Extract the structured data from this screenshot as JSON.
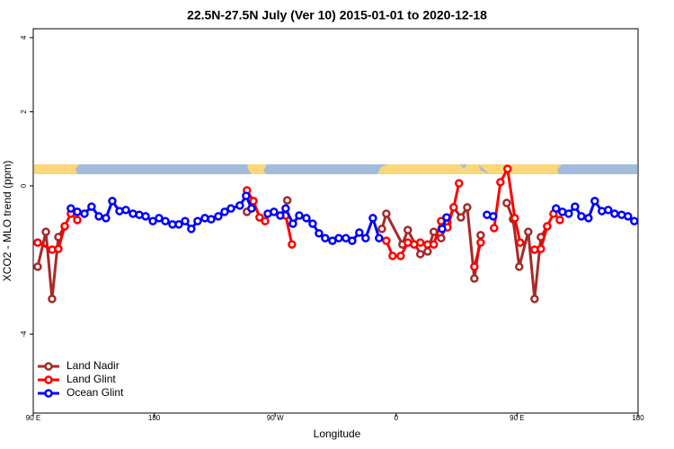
{
  "chart_data": {
    "type": "line",
    "title": "22.5N-27.5N July (Ver 10)   2015-01-01 to 2020-12-18",
    "x_label": "Longitude",
    "y_label": "XCO2 - MLO trend (ppm)",
    "xlim": [
      90,
      540
    ],
    "xticks": [
      {
        "value": 90,
        "label": "90 E"
      },
      180,
      {
        "value": 270,
        "label": "90 W"
      },
      {
        "value": 360,
        "label": "0"
      },
      {
        "value": 450,
        "label": "90 E"
      },
      {
        "value": 540,
        "label": "180"
      }
    ],
    "ylim": [
      -6.13,
      4.24
    ],
    "yticks": [
      -4,
      0,
      2,
      4
    ],
    "legend": "bottom-left",
    "series": [
      {
        "name": "Land Nadir",
        "color": "#a52a2a",
        "x": [
          93.3,
          99.4,
          104,
          108.7,
          113.4,
          null,
          249,
          253.8,
          null,
          279,
          null,
          349.4,
          352.7,
          364.7,
          368.7,
          378,
          383.4,
          388,
          393.5,
          398.2,
          402.8,
          408.2,
          412.9,
          418.2,
          422.9,
          null,
          442.3,
          447,
          451.6,
          458.3,
          463,
          467.7,
          472.4
        ],
        "values": [
          -2.18,
          -1.24,
          -3.05,
          -1.38,
          -1.09,
          null,
          -0.7,
          -0.41,
          null,
          -0.39,
          null,
          -1.16,
          -0.75,
          -1.58,
          -1.19,
          -1.84,
          -1.77,
          -1.24,
          -1.41,
          -0.99,
          -0.58,
          -0.85,
          -0.58,
          -2.5,
          -1.33,
          null,
          -0.46,
          -0.9,
          -2.18,
          -1.24,
          -3.05,
          -1.38,
          -1.09
        ]
      },
      {
        "name": "Land Glint",
        "color": "#ff0000",
        "x": [
          93.3,
          104,
          108.7,
          113.4,
          118,
          122.8,
          null,
          249,
          253.8,
          258.4,
          262.5,
          null,
          277.8,
          282.5,
          null,
          352.7,
          357.4,
          363.4,
          368.7,
          373.4,
          378,
          383.4,
          388,
          393.5,
          398.2,
          402.8,
          406.8,
          null,
          418.2,
          422.9,
          null,
          432.9,
          437.6,
          442.9,
          448.3,
          452.3,
          null,
          463,
          467.7,
          472.4,
          477.1,
          481.8
        ],
        "values": [
          -1.53,
          -1.72,
          -1.7,
          -1.09,
          -0.75,
          -0.92,
          null,
          -0.12,
          -0.41,
          -0.85,
          -0.95,
          null,
          -0.8,
          -1.58,
          null,
          -1.48,
          -1.89,
          -1.89,
          -1.53,
          -1.58,
          -1.53,
          -1.58,
          -1.58,
          -0.95,
          -1.12,
          -0.58,
          0.07,
          null,
          -2.18,
          -1.53,
          null,
          -1.14,
          0.1,
          0.46,
          -0.87,
          -1.53,
          null,
          -1.72,
          -1.7,
          -1.09,
          -0.75,
          -0.92
        ]
      },
      {
        "name": "Ocean Glint",
        "color": "#0000ff",
        "x": [
          118,
          122.8,
          128.1,
          133.4,
          138.8,
          144.1,
          148.8,
          154.2,
          158.9,
          164.2,
          168.9,
          173.6,
          179,
          183.6,
          188.3,
          193.6,
          198.3,
          203,
          207.6,
          212.3,
          217.7,
          222.4,
          227.7,
          232.4,
          237.1,
          243.7,
          248.4,
          252.4,
          null,
          264.5,
          269.1,
          273.8,
          277.8,
          283.2,
          287.9,
          293.2,
          297.9,
          302.6,
          307.2,
          312.6,
          317.3,
          322.6,
          327.3,
          332.6,
          337.3,
          342.7,
          347.3,
          null,
          394.2,
          397.5,
          null,
          427.6,
          432.2,
          null,
          479,
          483.7,
          488.4,
          493.1,
          497.8,
          503.1,
          507.8,
          513.1,
          517.8,
          522.5,
          527.8,
          532.5,
          537.2
        ],
        "values": [
          -0.61,
          -0.7,
          -0.75,
          -0.56,
          -0.82,
          -0.87,
          -0.41,
          -0.68,
          -0.65,
          -0.75,
          -0.78,
          -0.82,
          -0.95,
          -0.87,
          -0.95,
          -1.04,
          -1.04,
          -0.95,
          -1.16,
          -0.95,
          -0.87,
          -0.9,
          -0.82,
          -0.7,
          -0.61,
          -0.53,
          -0.27,
          -0.61,
          null,
          -0.75,
          -0.7,
          -0.8,
          -0.61,
          -1.02,
          -0.8,
          -0.87,
          -1.02,
          -1.28,
          -1.41,
          -1.48,
          -1.41,
          -1.41,
          -1.48,
          -1.26,
          -1.41,
          -0.87,
          -1.41,
          null,
          -1.16,
          -0.85,
          null,
          -0.78,
          -0.82,
          null,
          -0.61,
          -0.7,
          -0.75,
          -0.56,
          -0.82,
          -0.87,
          -0.41,
          -0.68,
          -0.65,
          -0.75,
          -0.78,
          -0.82,
          -0.95
        ]
      }
    ]
  }
}
